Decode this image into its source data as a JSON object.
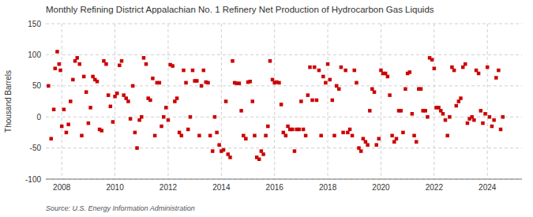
{
  "chart_data": {
    "type": "scatter",
    "title": "Monthly Refining District Appalachian No. 1 Refinery Net Production of Hydrocarbon Gas Liquids",
    "ylabel": "Thousand Barrels",
    "annotations": [
      "Source: U.S. Energy Information Administration"
    ],
    "color": "#cc0000",
    "marker": "square",
    "grid": true,
    "xlim": [
      2007.4,
      2025.3
    ],
    "xticks": [
      2008,
      2010,
      2012,
      2014,
      2016,
      2018,
      2020,
      2022,
      2024
    ],
    "ylim": [
      -100,
      150
    ],
    "yticks": [
      -100,
      -50,
      0,
      50,
      100,
      150
    ],
    "x": [
      2007.5,
      2007.6,
      2007.7,
      2007.75,
      2007.83,
      2007.9,
      2007.95,
      2008.0,
      2008.08,
      2008.17,
      2008.25,
      2008.33,
      2008.42,
      2008.5,
      2008.58,
      2008.67,
      2008.75,
      2008.83,
      2008.92,
      2009.0,
      2009.08,
      2009.17,
      2009.25,
      2009.33,
      2009.42,
      2009.5,
      2009.58,
      2009.67,
      2009.75,
      2009.83,
      2009.92,
      2010.0,
      2010.08,
      2010.17,
      2010.25,
      2010.33,
      2010.42,
      2010.5,
      2010.58,
      2010.67,
      2010.75,
      2010.83,
      2010.92,
      2011.0,
      2011.08,
      2011.17,
      2011.25,
      2011.33,
      2011.42,
      2011.5,
      2011.58,
      2011.67,
      2011.75,
      2011.83,
      2011.92,
      2012.0,
      2012.08,
      2012.17,
      2012.25,
      2012.33,
      2012.42,
      2012.5,
      2012.58,
      2012.67,
      2012.75,
      2012.83,
      2012.92,
      2013.0,
      2013.08,
      2013.17,
      2013.25,
      2013.33,
      2013.42,
      2013.5,
      2013.58,
      2013.67,
      2013.75,
      2013.83,
      2013.92,
      2014.0,
      2014.08,
      2014.17,
      2014.25,
      2014.33,
      2014.42,
      2014.5,
      2014.58,
      2014.67,
      2014.75,
      2014.83,
      2014.92,
      2015.0,
      2015.08,
      2015.17,
      2015.25,
      2015.33,
      2015.42,
      2015.5,
      2015.58,
      2015.67,
      2015.75,
      2015.83,
      2015.92,
      2016.0,
      2016.08,
      2016.17,
      2016.25,
      2016.33,
      2016.42,
      2016.5,
      2016.58,
      2016.67,
      2016.75,
      2016.83,
      2016.92,
      2017.0,
      2017.08,
      2017.17,
      2017.25,
      2017.33,
      2017.42,
      2017.5,
      2017.58,
      2017.67,
      2017.75,
      2017.83,
      2017.92,
      2018.0,
      2018.08,
      2018.17,
      2018.25,
      2018.33,
      2018.42,
      2018.5,
      2018.58,
      2018.67,
      2018.75,
      2018.83,
      2018.92,
      2019.0,
      2019.08,
      2019.17,
      2019.25,
      2019.33,
      2019.42,
      2019.5,
      2019.58,
      2019.67,
      2019.75,
      2019.83,
      2019.92,
      2020.0,
      2020.08,
      2020.17,
      2020.25,
      2020.33,
      2020.42,
      2020.5,
      2020.58,
      2020.67,
      2020.75,
      2020.83,
      2020.92,
      2021.0,
      2021.08,
      2021.17,
      2021.25,
      2021.33,
      2021.42,
      2021.5,
      2021.58,
      2021.67,
      2021.75,
      2021.83,
      2021.92,
      2022.0,
      2022.08,
      2022.17,
      2022.25,
      2022.33,
      2022.42,
      2022.5,
      2022.58,
      2022.67,
      2022.75,
      2022.83,
      2022.92,
      2023.0,
      2023.08,
      2023.17,
      2023.25,
      2023.33,
      2023.42,
      2023.5,
      2023.58,
      2023.67,
      2023.75,
      2023.83,
      2023.92,
      2024.0,
      2024.08,
      2024.17,
      2024.25,
      2024.33,
      2024.42,
      2024.5,
      2024.58
    ],
    "values": [
      50,
      -35,
      12,
      78,
      105,
      85,
      75,
      -15,
      12,
      -25,
      -12,
      25,
      60,
      90,
      95,
      85,
      -30,
      65,
      40,
      -10,
      15,
      65,
      60,
      57,
      -20,
      -22,
      90,
      85,
      35,
      17,
      -8,
      33,
      38,
      83,
      90,
      35,
      30,
      25,
      -3,
      50,
      -25,
      -50,
      -5,
      0,
      95,
      85,
      30,
      27,
      62,
      -30,
      55,
      55,
      -15,
      0,
      15,
      -5,
      84,
      82,
      25,
      30,
      -25,
      -30,
      75,
      55,
      -20,
      0,
      75,
      58,
      58,
      -30,
      50,
      75,
      56,
      55,
      -30,
      -55,
      0,
      -25,
      -45,
      -55,
      -53,
      25,
      -60,
      -65,
      90,
      55,
      54,
      54,
      10,
      -30,
      -35,
      56,
      57,
      25,
      -30,
      -65,
      -68,
      -55,
      -60,
      -30,
      -15,
      90,
      60,
      55,
      56,
      55,
      20,
      -25,
      -30,
      -15,
      -20,
      -20,
      -55,
      -20,
      -20,
      25,
      -20,
      -30,
      35,
      80,
      27,
      80,
      27,
      75,
      -30,
      65,
      55,
      85,
      60,
      27,
      -30,
      50,
      45,
      80,
      -25,
      75,
      -25,
      -20,
      -30,
      75,
      55,
      -50,
      -55,
      -35,
      -40,
      -45,
      10,
      45,
      40,
      -45,
      -35,
      75,
      70,
      70,
      65,
      35,
      -30,
      -40,
      -35,
      10,
      10,
      -25,
      45,
      70,
      72,
      5,
      -30,
      -40,
      45,
      45,
      10,
      10,
      0,
      95,
      92,
      78,
      15,
      15,
      10,
      5,
      -5,
      -30,
      0,
      80,
      75,
      18,
      25,
      30,
      80,
      85,
      -10,
      -3,
      0,
      -5,
      75,
      70,
      10,
      -10,
      5,
      80,
      0,
      -15,
      -5,
      63,
      75,
      -20,
      0
    ]
  }
}
